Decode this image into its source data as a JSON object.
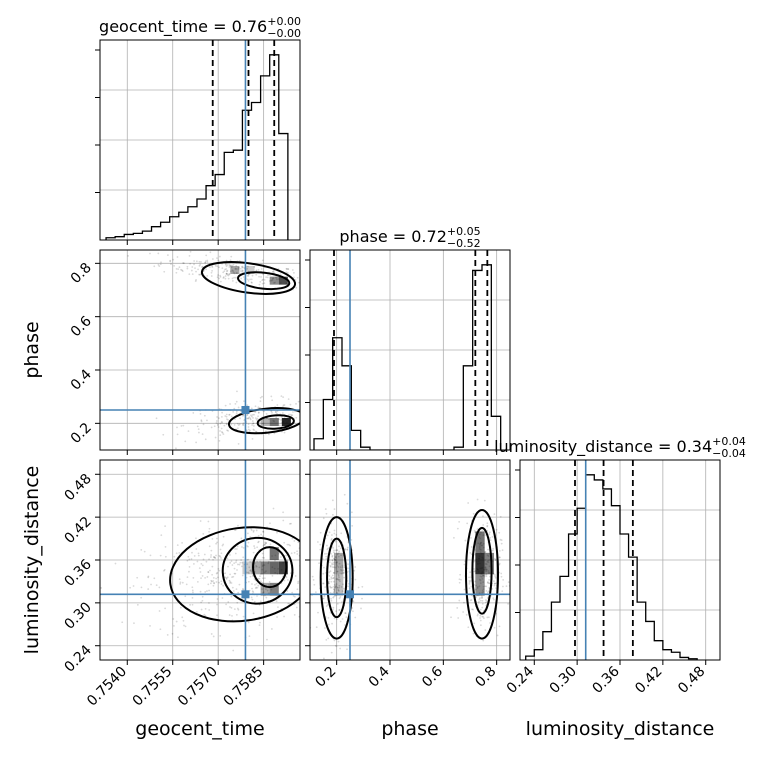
{
  "chart_data": {
    "type": "corner",
    "parameters": [
      "geocent_time",
      "phase",
      "luminosity_distance"
    ],
    "axis_labels": [
      "geocent_time",
      "phase",
      "luminosity_distance"
    ],
    "truths": {
      "geocent_time": 0.7579,
      "phase": 0.25,
      "luminosity_distance": 0.312
    },
    "titles": [
      {
        "name": "geocent_time",
        "value": "0.76",
        "plus": "+0.00",
        "minus": "−0.00"
      },
      {
        "name": "phase",
        "value": "0.72",
        "plus": "+0.05",
        "minus": "−0.52"
      },
      {
        "name": "luminosity_distance",
        "value": "0.34",
        "plus": "+0.04",
        "minus": "−0.04"
      }
    ],
    "ranges": {
      "geocent_time": [
        0.7531,
        0.7597
      ],
      "phase": [
        0.1,
        0.85
      ],
      "luminosity_distance": [
        0.22,
        0.5
      ]
    },
    "ticks": {
      "geocent_time": [
        "0.7540",
        "0.7555",
        "0.7570",
        "0.7585"
      ],
      "phase": [
        "0.2",
        "0.4",
        "0.6",
        "0.8"
      ],
      "luminosity_distance": [
        "0.24",
        "0.30",
        "0.36",
        "0.42",
        "0.48"
      ]
    },
    "tick_values": {
      "geocent_time": [
        0.754,
        0.7555,
        0.757,
        0.7585
      ],
      "phase": [
        0.2,
        0.4,
        0.6,
        0.8
      ],
      "luminosity_distance": [
        0.24,
        0.3,
        0.36,
        0.42,
        0.48
      ]
    },
    "quantiles": {
      "geocent_time": [
        0.75682,
        0.758,
        0.75885
      ],
      "phase": [
        0.19,
        0.72,
        0.765
      ],
      "luminosity_distance": [
        0.297,
        0.337,
        0.378
      ]
    },
    "histograms": {
      "geocent_time": {
        "edges": [
          0.7533,
          0.7536,
          0.7539,
          0.7542,
          0.7545,
          0.7548,
          0.7551,
          0.7554,
          0.7557,
          0.756,
          0.7563,
          0.7566,
          0.7569,
          0.7572,
          0.7575,
          0.7578,
          0.7581,
          0.7584,
          0.7587,
          0.759,
          0.7593
        ],
        "counts": [
          2,
          3,
          5,
          6,
          8,
          12,
          16,
          21,
          25,
          30,
          37,
          49,
          59,
          79,
          81,
          117,
          124,
          148,
          167,
          96
        ]
      },
      "phase": {
        "edges": [
          0.115,
          0.15,
          0.185,
          0.22,
          0.255,
          0.29,
          0.325,
          0.36,
          0.395,
          0.43,
          0.465,
          0.5,
          0.535,
          0.57,
          0.605,
          0.64,
          0.675,
          0.71,
          0.745,
          0.78,
          0.815
        ],
        "counts": [
          20,
          90,
          200,
          150,
          35,
          5,
          0,
          0,
          0,
          0,
          0,
          0,
          0,
          0,
          0,
          5,
          150,
          320,
          330,
          60
        ]
      },
      "luminosity_distance": {
        "edges": [
          0.228,
          0.24,
          0.252,
          0.264,
          0.276,
          0.288,
          0.3,
          0.312,
          0.324,
          0.336,
          0.348,
          0.36,
          0.372,
          0.384,
          0.396,
          0.408,
          0.42,
          0.432,
          0.444,
          0.456,
          0.468
        ],
        "counts": [
          3,
          8,
          22,
          45,
          65,
          98,
          118,
          144,
          140,
          133,
          120,
          98,
          80,
          45,
          30,
          15,
          8,
          6,
          2,
          1
        ]
      }
    },
    "grid": true
  }
}
